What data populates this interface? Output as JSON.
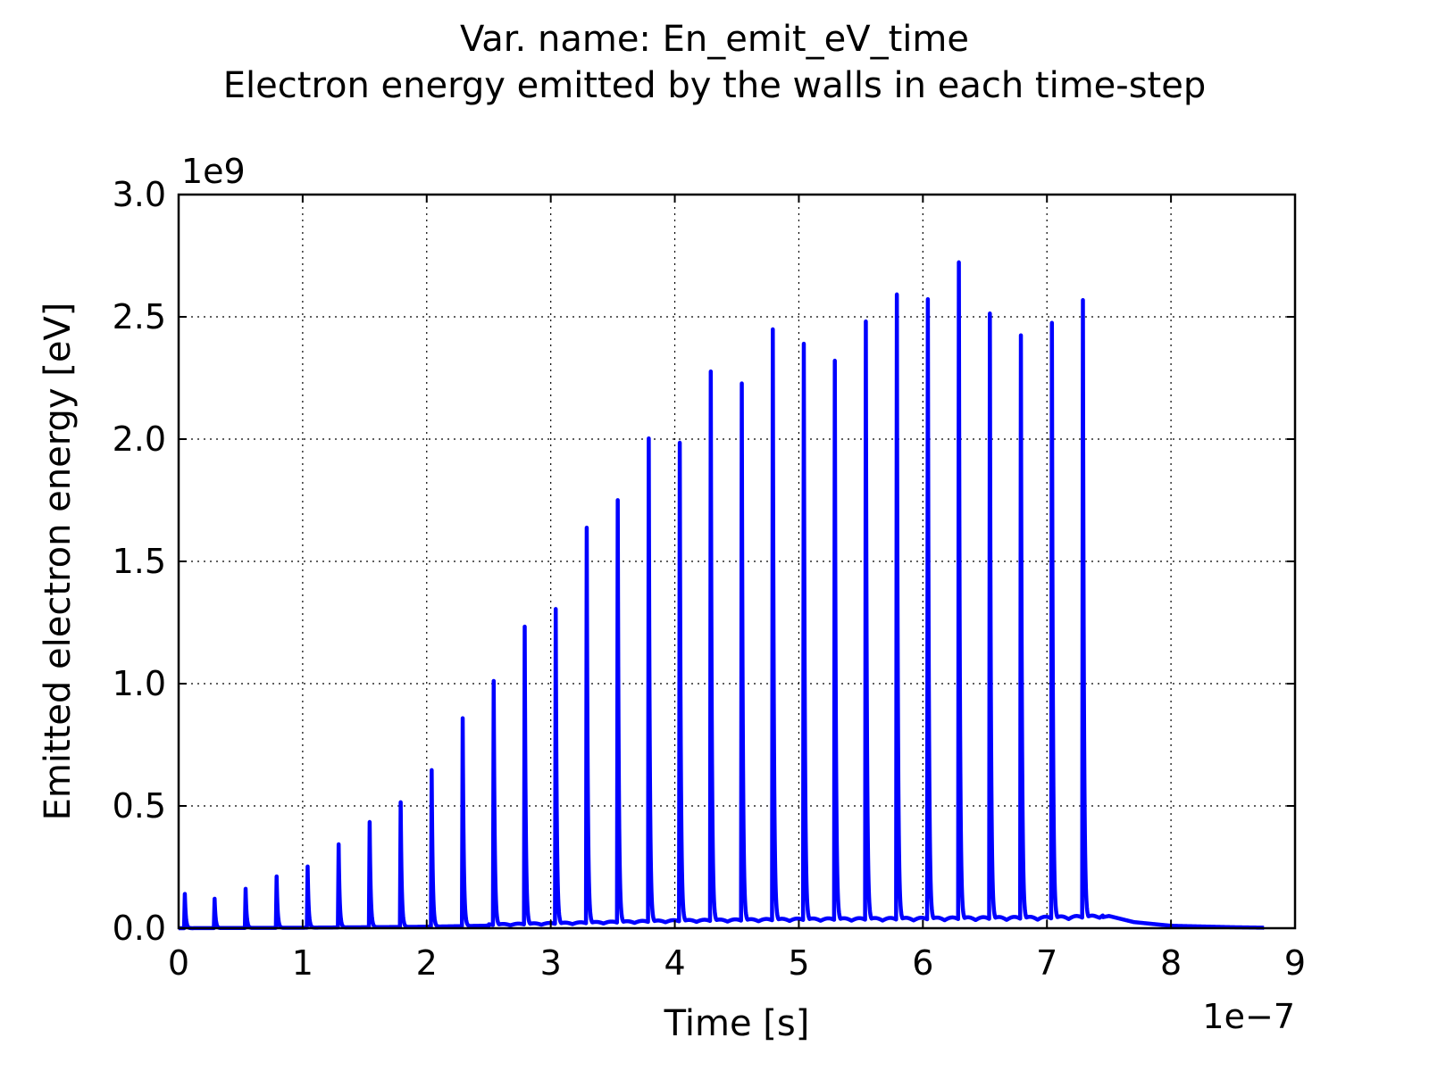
{
  "chart_data": {
    "type": "line",
    "title": "Var. name: En_emit_eV_time",
    "subtitle": "Electron energy emitted by the walls in each time-step",
    "xlabel": "Time [s]",
    "ylabel": "Emitted electron energy [eV]",
    "x_multiplier": "1e−7",
    "y_multiplier": "1e9",
    "xlim": [
      0,
      9
    ],
    "ylim": [
      0,
      3.0
    ],
    "x_unit_scale": 1e-07,
    "y_unit_scale": 1000000000.0,
    "xticks": [
      "0",
      "1",
      "2",
      "3",
      "4",
      "5",
      "6",
      "7",
      "8",
      "9"
    ],
    "yticks": [
      "0.0",
      "0.5",
      "1.0",
      "1.5",
      "2.0",
      "2.5",
      "3.0"
    ],
    "grid": true,
    "grid_style": "dotted",
    "series_color": "#0000ff",
    "spike_times": [
      0.05,
      0.29,
      0.54,
      0.79,
      1.04,
      1.29,
      1.54,
      1.79,
      2.04,
      2.29,
      2.54,
      2.79,
      3.04,
      3.29,
      3.54,
      3.79,
      4.04,
      4.29,
      4.54,
      4.79,
      5.04,
      5.29,
      5.54,
      5.79,
      6.04,
      6.29,
      6.54,
      6.79,
      7.04,
      7.29
    ],
    "spike_peaks": [
      0.14,
      0.12,
      0.16,
      0.21,
      0.25,
      0.34,
      0.43,
      0.51,
      0.64,
      0.85,
      1.0,
      1.22,
      1.29,
      1.62,
      1.73,
      1.98,
      1.96,
      2.25,
      2.2,
      2.42,
      2.36,
      2.29,
      2.45,
      2.56,
      2.54,
      2.69,
      2.48,
      2.39,
      2.44,
      2.53
    ],
    "baseline": [
      [
        0.0,
        0.0
      ],
      [
        1.0,
        0.002
      ],
      [
        2.0,
        0.006
      ],
      [
        3.0,
        0.015
      ],
      [
        4.0,
        0.025
      ],
      [
        5.0,
        0.03
      ],
      [
        6.0,
        0.032
      ],
      [
        7.0,
        0.035
      ],
      [
        7.4,
        0.04
      ],
      [
        7.5,
        0.05
      ],
      [
        7.7,
        0.025
      ],
      [
        8.0,
        0.01
      ],
      [
        8.5,
        0.004
      ],
      [
        8.75,
        0.002
      ]
    ],
    "x_end": 8.75
  }
}
